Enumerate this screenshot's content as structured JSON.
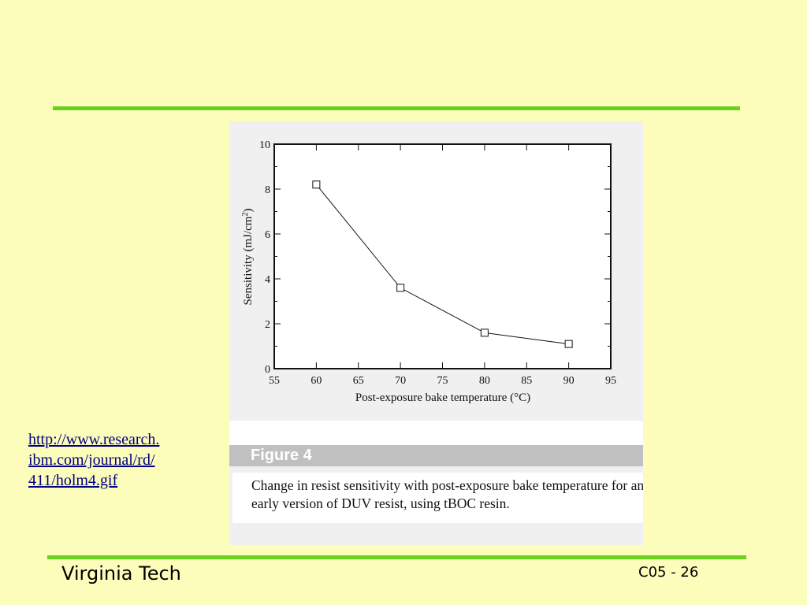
{
  "source_link": "http://www.research.\nibm.com/journal/rd/\n411/holm4.gif",
  "figure": {
    "label": "Figure 4",
    "caption": "Change in resist sensitivity with post-exposure bake temperature for an early version of DUV resist, using tBOC resin."
  },
  "footer": {
    "left": "Virginia Tech",
    "right": "C05 - 26"
  },
  "colors": {
    "background": "#fcfcbb",
    "rule": "#6ad21f",
    "link": "#000080"
  },
  "chart_data": {
    "type": "line",
    "title": "",
    "xlabel": "Post-exposure bake temperature (°C)",
    "ylabel_text": "Sensitivity (mJ/cm",
    "ylabel_sup": "2",
    "ylabel_end": ")",
    "xlim": [
      55,
      95
    ],
    "ylim": [
      0,
      10
    ],
    "xticks": [
      55,
      60,
      65,
      70,
      75,
      80,
      85,
      90,
      95
    ],
    "yticks": [
      0,
      2,
      4,
      6,
      8,
      10
    ],
    "marker": "open-square",
    "grid": false,
    "series": [
      {
        "x": [
          60,
          70,
          80,
          90
        ],
        "y": [
          8.2,
          3.6,
          1.6,
          1.1
        ]
      }
    ]
  }
}
